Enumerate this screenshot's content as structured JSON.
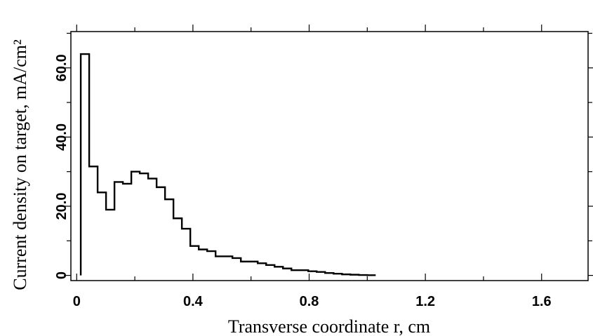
{
  "chart_data": {
    "type": "line",
    "step": true,
    "xlabel": "Transverse coordinate r, cm",
    "ylabel": "Current density on target, mA/cm²",
    "xlim": [
      -0.02,
      1.76
    ],
    "ylim": [
      -1.5,
      70.5
    ],
    "x_ticks": [
      0,
      0.4,
      0.8,
      1.2,
      1.6
    ],
    "x_tick_labels": [
      "0",
      "0.4",
      "0.8",
      "1.2",
      "1.6"
    ],
    "y_ticks": [
      0,
      20,
      40,
      60
    ],
    "y_tick_labels": [
      "0",
      "20.0",
      "40.0",
      "60.0"
    ],
    "grid": false,
    "series": [
      {
        "bin_edges": [
          0.014,
          0.043,
          0.072,
          0.101,
          0.13,
          0.159,
          0.188,
          0.217,
          0.246,
          0.275,
          0.304,
          0.333,
          0.362,
          0.391,
          0.42,
          0.449,
          0.478,
          0.507,
          0.536,
          0.565,
          0.594,
          0.623,
          0.652,
          0.681,
          0.71,
          0.739,
          0.768,
          0.797,
          0.826,
          0.855,
          0.884,
          0.913,
          0.942,
          0.971,
          1.0,
          1.029
        ],
        "values": [
          64,
          31.5,
          24,
          19,
          27,
          26.5,
          30,
          29.5,
          28,
          25.5,
          22,
          16.5,
          13.5,
          8.5,
          7.5,
          7,
          5.5,
          5.5,
          5,
          4,
          4,
          3.5,
          3,
          2.5,
          2,
          1.5,
          1.5,
          1.2,
          1,
          0.7,
          0.5,
          0.3,
          0.2,
          0.1,
          0.05
        ]
      }
    ]
  }
}
